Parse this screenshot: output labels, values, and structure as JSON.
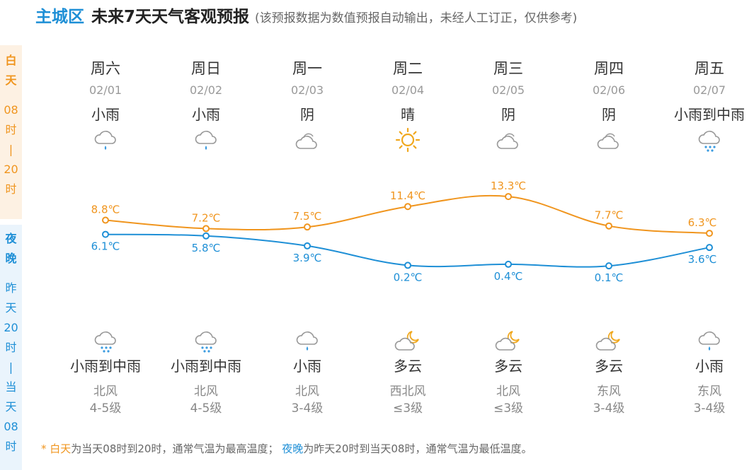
{
  "header": {
    "city": "主城区",
    "title": "未来7天天气客观预报",
    "note": "(该预报数据为数值预报自动输出，未经人工订正，仅供参考)"
  },
  "side": {
    "day_label": [
      "白",
      "天"
    ],
    "day_range": [
      "08",
      "时",
      "|",
      "20",
      "时"
    ],
    "night_label": [
      "夜",
      "晚"
    ],
    "night_range": [
      "昨",
      "天",
      "20",
      "时",
      "|",
      "当",
      "天",
      "08",
      "时"
    ]
  },
  "days": [
    {
      "weekday": "周六",
      "date": "02/01",
      "day_weather": "小雨",
      "day_icon": "light-rain-icon",
      "night_icon": "rain-icon",
      "night_weather": "小雨到中雨",
      "wind": "北风",
      "wind_level": "4-5级"
    },
    {
      "weekday": "周日",
      "date": "02/02",
      "day_weather": "小雨",
      "day_icon": "light-rain-icon",
      "night_icon": "rain-icon",
      "night_weather": "小雨到中雨",
      "wind": "北风",
      "wind_level": "4-5级"
    },
    {
      "weekday": "周一",
      "date": "02/03",
      "day_weather": "阴",
      "day_icon": "overcast-icon",
      "night_icon": "light-rain-icon",
      "night_weather": "小雨",
      "wind": "北风",
      "wind_level": "3-4级"
    },
    {
      "weekday": "周二",
      "date": "02/04",
      "day_weather": "晴",
      "day_icon": "sun-icon",
      "night_icon": "cloudy-night-icon",
      "night_weather": "多云",
      "wind": "西北风",
      "wind_level": "≤3级"
    },
    {
      "weekday": "周三",
      "date": "02/05",
      "day_weather": "阴",
      "day_icon": "overcast-icon",
      "night_icon": "cloudy-night-icon",
      "night_weather": "多云",
      "wind": "北风",
      "wind_level": "≤3级"
    },
    {
      "weekday": "周四",
      "date": "02/06",
      "day_weather": "阴",
      "day_icon": "overcast-icon",
      "night_icon": "cloudy-night-icon",
      "night_weather": "多云",
      "wind": "东风",
      "wind_level": "3-4级"
    },
    {
      "weekday": "周五",
      "date": "02/07",
      "day_weather": "小雨到中雨",
      "day_icon": "rain-icon",
      "night_icon": "light-rain-icon",
      "night_weather": "小雨",
      "wind": "东风",
      "wind_level": "3-4级"
    }
  ],
  "chart_data": {
    "type": "line",
    "categories": [
      "02/01",
      "02/02",
      "02/03",
      "02/04",
      "02/05",
      "02/06",
      "02/07"
    ],
    "series": [
      {
        "values": [
          8.8,
          7.2,
          7.5,
          11.4,
          13.3,
          7.7,
          6.3
        ],
        "labels": [
          "8.8℃",
          "7.2℃",
          "7.5℃",
          "11.4℃",
          "13.3℃",
          "7.7℃",
          "6.3℃"
        ],
        "color": "#f0951e"
      },
      {
        "values": [
          6.1,
          5.8,
          3.9,
          0.2,
          0.4,
          0.1,
          3.6
        ],
        "labels": [
          "6.1℃",
          "5.8℃",
          "3.9℃",
          "0.2℃",
          "0.4℃",
          "0.1℃",
          "3.6℃"
        ],
        "color": "#1e8fd6"
      }
    ],
    "grid": false,
    "legend": "none"
  },
  "footer": {
    "star": "* ",
    "day_term": "白天",
    "day_desc": "为当天08时到20时，通常气温为最高温度；",
    "night_term": "夜晚",
    "night_desc": "为昨天20时到当天08时，通常气温为最低温度。"
  }
}
